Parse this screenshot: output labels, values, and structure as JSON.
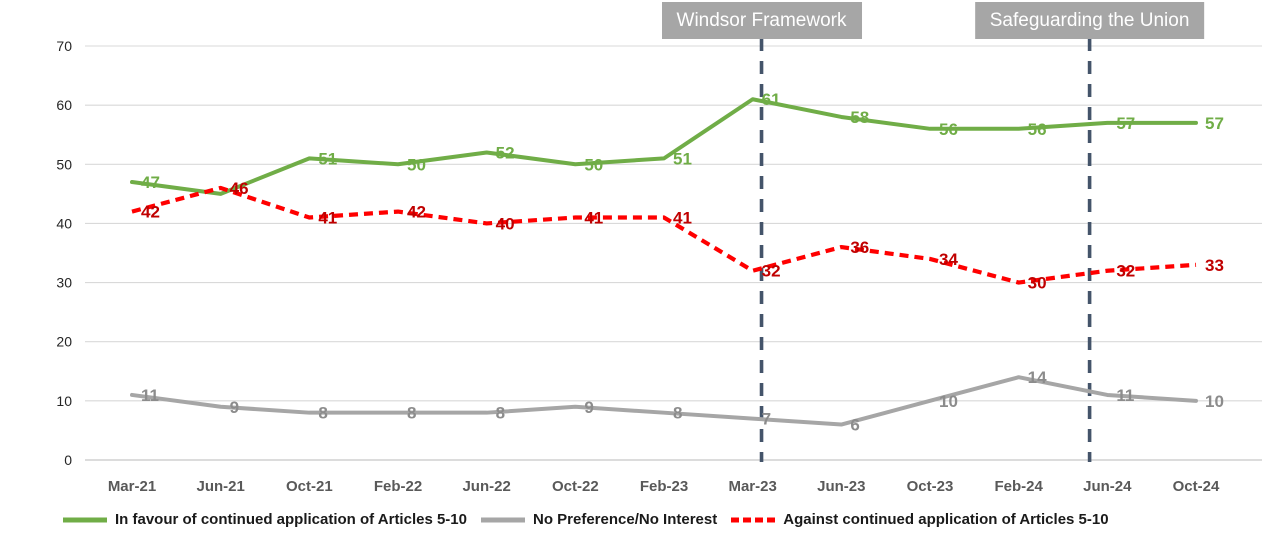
{
  "chart_data": {
    "type": "line",
    "categories": [
      "Mar-21",
      "Jun-21",
      "Oct-21",
      "Feb-22",
      "Jun-22",
      "Oct-22",
      "Feb-23",
      "Mar-23",
      "Jun-23",
      "Oct-23",
      "Feb-24",
      "Jun-24",
      "Oct-24"
    ],
    "series": [
      {
        "name": "In favour of continued application of Articles 5-10",
        "color": "#70ad47",
        "label_color": "#70ad47",
        "line_style": "solid",
        "values": [
          47,
          45,
          51,
          50,
          52,
          50,
          51,
          61,
          58,
          56,
          56,
          57,
          57
        ],
        "labels": [
          "47",
          "",
          "51",
          "50",
          "52",
          "50",
          "51",
          "61",
          "58",
          "56",
          "56",
          "57",
          "57"
        ]
      },
      {
        "name": "No Preference/No Interest",
        "color": "#a6a6a6",
        "label_color": "#8c8c8c",
        "line_style": "solid",
        "values": [
          11,
          9,
          8,
          8,
          8,
          9,
          8,
          7,
          6,
          10,
          14,
          11,
          10
        ],
        "labels": [
          "11",
          "9",
          "8",
          "8",
          "8",
          "9",
          "8",
          "7",
          "6",
          "10",
          "14",
          "11",
          "10"
        ]
      },
      {
        "name": "Against continued application of Articles 5-10",
        "color": "#ff0000",
        "label_color": "#c00000",
        "line_style": "dashed",
        "values": [
          42,
          46,
          41,
          42,
          40,
          41,
          41,
          32,
          36,
          34,
          30,
          32,
          33
        ],
        "labels": [
          "42",
          "46",
          "41",
          "42",
          "40",
          "41",
          "41",
          "32",
          "36",
          "34",
          "30",
          "32",
          "33"
        ]
      }
    ],
    "ylim": [
      0,
      70
    ],
    "yticks": [
      0,
      10,
      20,
      30,
      40,
      50,
      60,
      70
    ],
    "grid": true,
    "legend_position": "bottom",
    "annotations": [
      {
        "label": "Windsor Framework",
        "at_index": 7.1
      },
      {
        "label": "Safeguarding the Union",
        "at_index": 10.8
      }
    ],
    "annotation_line_color": "#44546a",
    "annotation_box_color": "#a6a6a6",
    "annotation_text_color": "#ffffff",
    "gridline_color": "#d9d9d9",
    "axis_line_color": "#d0d0d0"
  }
}
